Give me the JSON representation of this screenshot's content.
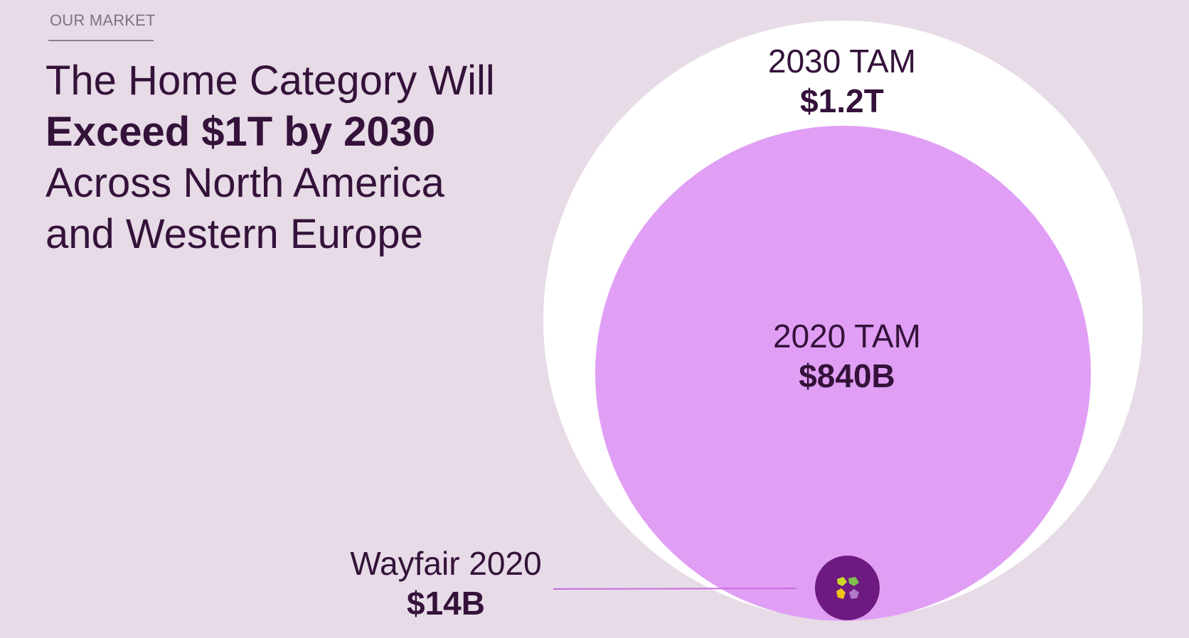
{
  "section": {
    "eyebrow": "OUR MARKET"
  },
  "headline": {
    "line1": "The Home Category Will",
    "line2": "Exceed $1T by 2030",
    "line3": "Across North America",
    "line4": "and Western Europe"
  },
  "tam_2030": {
    "title": "2030 TAM",
    "value": "$1.2T"
  },
  "tam_2020": {
    "title": "2020 TAM",
    "value": "$840B"
  },
  "wayfair_2020": {
    "title": "Wayfair 2020",
    "value": "$14B"
  },
  "colors": {
    "background": "#e6dbe6",
    "text": "#34123a",
    "outer_circle": "#ffffff",
    "inner_circle": "#e09ff4",
    "wayfair_dot": "#6e1a80",
    "connector": "#c96be0"
  },
  "icons": {
    "wayfair_logo": "wayfair-logo-icon"
  }
}
